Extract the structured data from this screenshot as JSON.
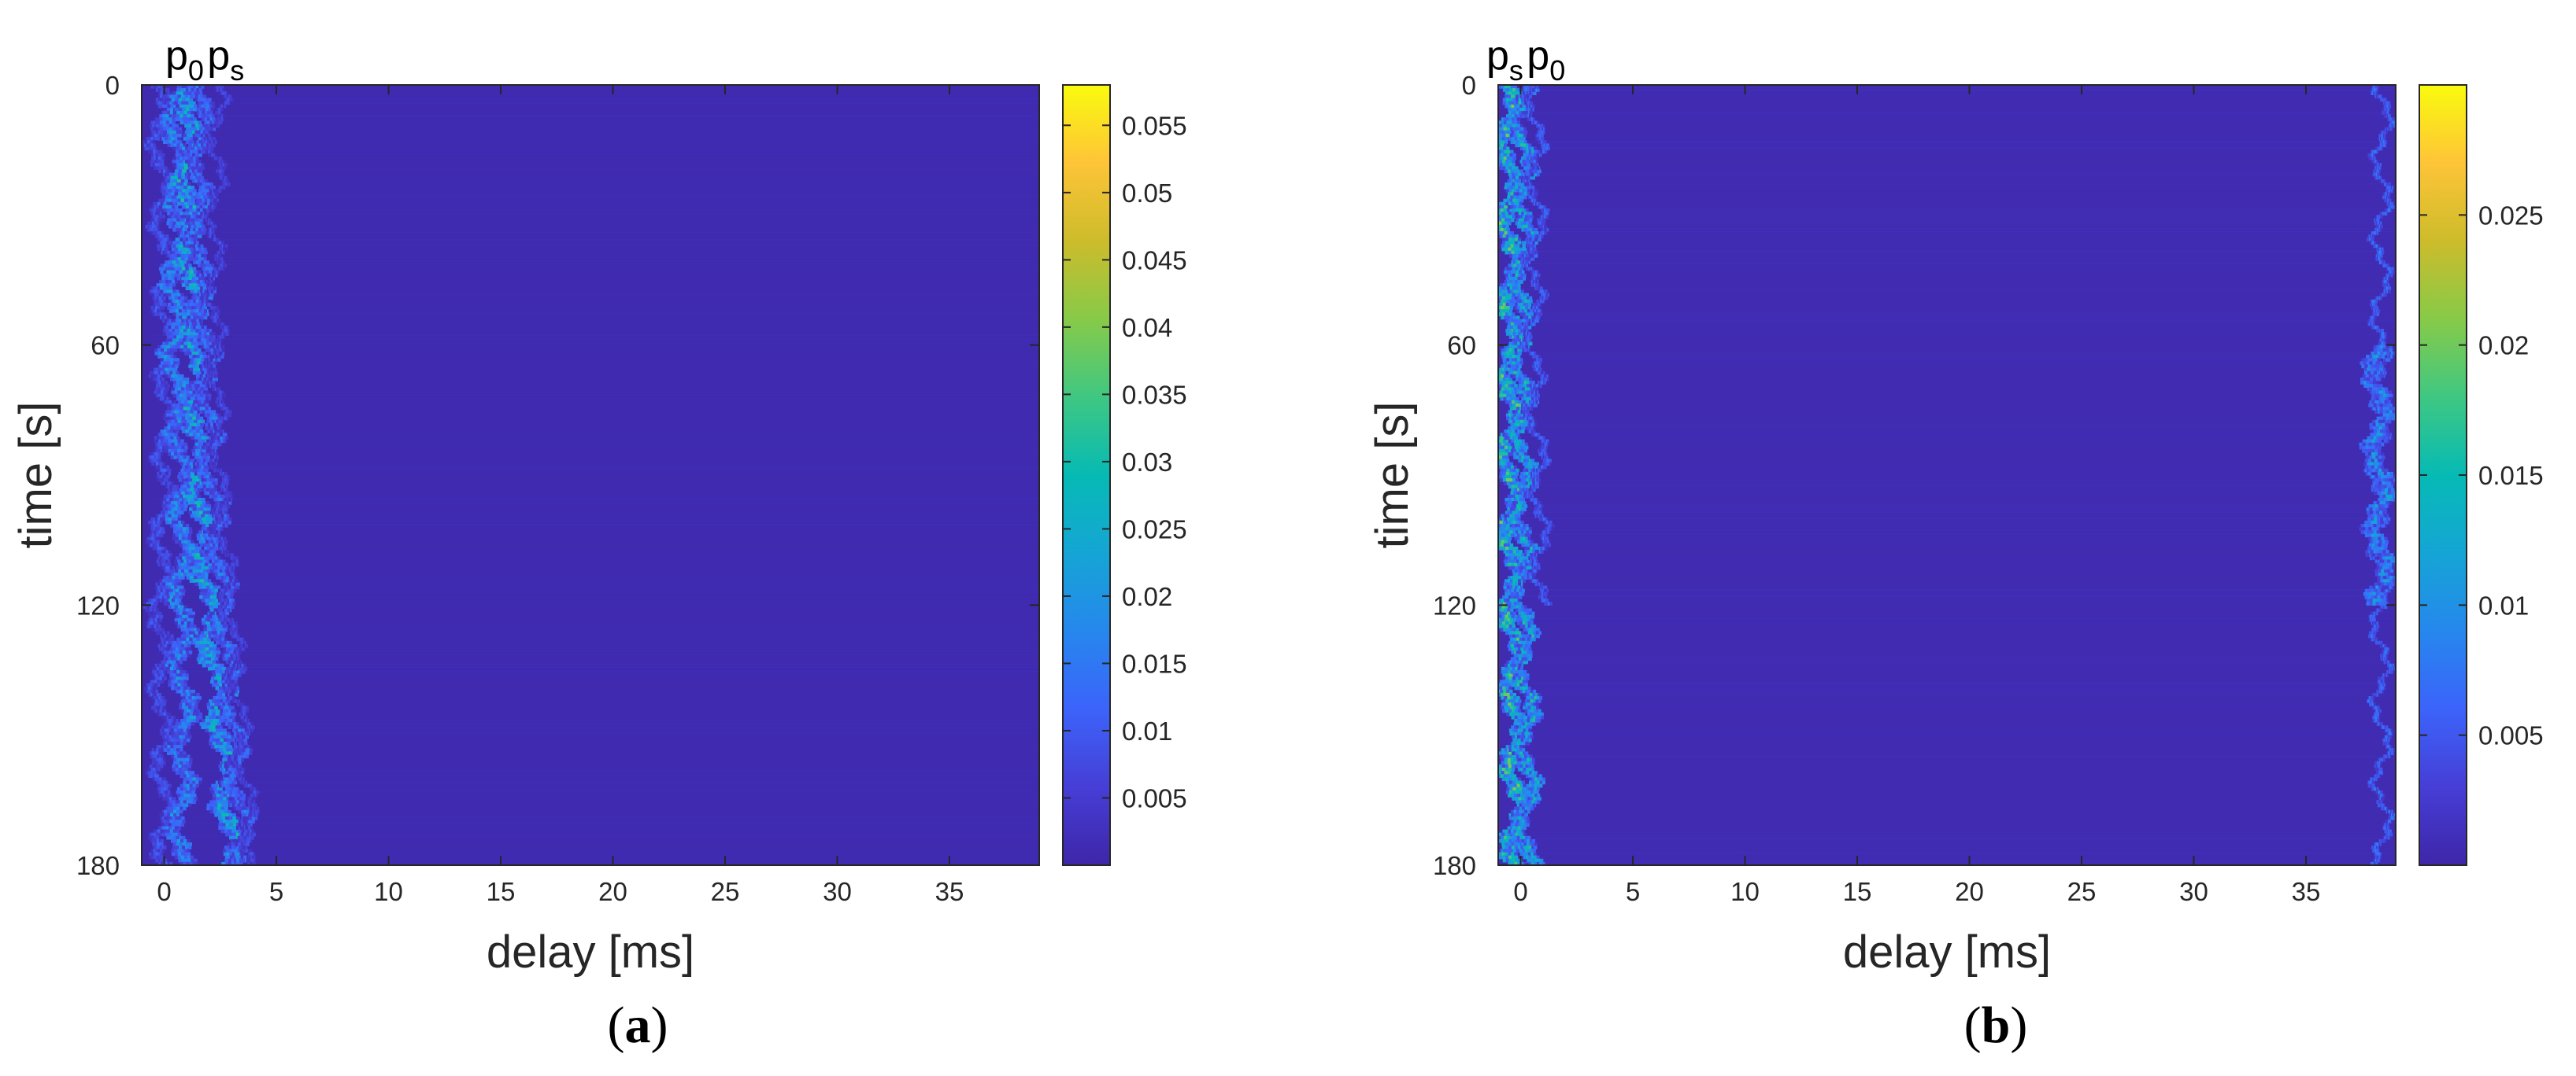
{
  "chart_data": [
    {
      "type": "heatmap",
      "panel_label": "a",
      "title_parts": [
        {
          "base": "p",
          "sub": "0"
        },
        {
          "base": "p",
          "sub": "s"
        }
      ],
      "xlabel": "delay [ms]",
      "ylabel": "time [s]",
      "xlim": [
        -1,
        39
      ],
      "ylim": [
        0,
        180
      ],
      "y_reversed": true,
      "xticks": [
        0,
        5,
        10,
        15,
        20,
        25,
        30,
        35
      ],
      "yticks": [
        0,
        60,
        120,
        180
      ],
      "colorbar": {
        "colormap": "parula",
        "range": [
          0,
          0.058
        ],
        "ticks": [
          "0.005",
          "0.01",
          "0.015",
          "0.02",
          "0.025",
          "0.03",
          "0.035",
          "0.04",
          "0.045",
          "0.05",
          "0.055"
        ]
      },
      "background_level": 0.001,
      "traces": [
        {
          "points": [
            [
              0,
              -0.3
            ],
            [
              30,
              -0.1
            ],
            [
              60,
              0.1
            ],
            [
              90,
              0.0
            ],
            [
              120,
              -0.2
            ],
            [
              150,
              -0.1
            ],
            [
              180,
              0.0
            ]
          ],
          "width": 0.5,
          "level": 0.012
        },
        {
          "points": [
            [
              0,
              0.5
            ],
            [
              30,
              0.6
            ],
            [
              60,
              0.4
            ],
            [
              90,
              0.8
            ],
            [
              120,
              0.7
            ],
            [
              150,
              0.9
            ],
            [
              180,
              0.6
            ]
          ],
          "width": 0.7,
          "level": 0.022
        },
        {
          "points": [
            [
              0,
              1.2
            ],
            [
              30,
              1.0
            ],
            [
              60,
              1.4
            ],
            [
              90,
              1.5
            ],
            [
              120,
              2.0
            ],
            [
              150,
              2.6
            ],
            [
              180,
              3.0
            ]
          ],
          "width": 0.8,
          "level": 0.03
        },
        {
          "points": [
            [
              0,
              1.7
            ],
            [
              30,
              1.5
            ],
            [
              60,
              1.8
            ],
            [
              90,
              2.1
            ],
            [
              120,
              2.6
            ],
            [
              150,
              3.1
            ],
            [
              180,
              3.5
            ]
          ],
          "width": 0.6,
          "level": 0.018
        },
        {
          "points": [
            [
              0,
              2.4
            ],
            [
              40,
              2.2
            ],
            [
              90,
              2.4
            ],
            [
              120,
              2.9
            ],
            [
              180,
              3.9
            ]
          ],
          "width": 0.3,
          "level": 0.01
        }
      ]
    },
    {
      "type": "heatmap",
      "panel_label": "b",
      "title_parts": [
        {
          "base": "p",
          "sub": "s"
        },
        {
          "base": "p",
          "sub": "0"
        }
      ],
      "xlabel": "delay [ms]",
      "ylabel": "time [s]",
      "xlim": [
        -1,
        39
      ],
      "ylim": [
        0,
        180
      ],
      "y_reversed": true,
      "xticks": [
        0,
        5,
        10,
        15,
        20,
        25,
        30,
        35
      ],
      "yticks": [
        0,
        60,
        120,
        180
      ],
      "colorbar": {
        "colormap": "parula",
        "range": [
          0,
          0.03
        ],
        "ticks": [
          "0.005",
          "0.01",
          "0.015",
          "0.02",
          "0.025"
        ]
      },
      "background_level": 0.0006,
      "traces": [
        {
          "points": [
            [
              0,
              -0.6
            ],
            [
              30,
              -0.5
            ],
            [
              60,
              -0.4
            ],
            [
              90,
              -0.5
            ],
            [
              120,
              -0.4
            ],
            [
              150,
              -0.3
            ],
            [
              180,
              -0.2
            ]
          ],
          "width": 0.7,
          "level": 0.02
        },
        {
          "points": [
            [
              0,
              0.0
            ],
            [
              30,
              0.2
            ],
            [
              60,
              -0.1
            ],
            [
              90,
              0.1
            ],
            [
              120,
              0.0
            ],
            [
              150,
              0.3
            ],
            [
              180,
              0.2
            ]
          ],
          "width": 0.6,
          "level": 0.016
        },
        {
          "points": [
            [
              0,
              0.6
            ],
            [
              30,
              0.7
            ],
            [
              60,
              0.5
            ],
            [
              90,
              0.8
            ],
            [
              120,
              0.9
            ]
          ],
          "width": 0.3,
          "level": 0.008
        },
        {
          "points": [
            [
              0,
              38.4
            ],
            [
              60,
              38.3
            ],
            [
              90,
              38.2
            ],
            [
              120,
              38.3
            ],
            [
              180,
              38.4
            ]
          ],
          "width": 0.25,
          "level": 0.009
        },
        {
          "points": [
            [
              60,
              38.2
            ],
            [
              120,
              38.3
            ]
          ],
          "width": 0.7,
          "level": 0.012
        }
      ]
    }
  ]
}
